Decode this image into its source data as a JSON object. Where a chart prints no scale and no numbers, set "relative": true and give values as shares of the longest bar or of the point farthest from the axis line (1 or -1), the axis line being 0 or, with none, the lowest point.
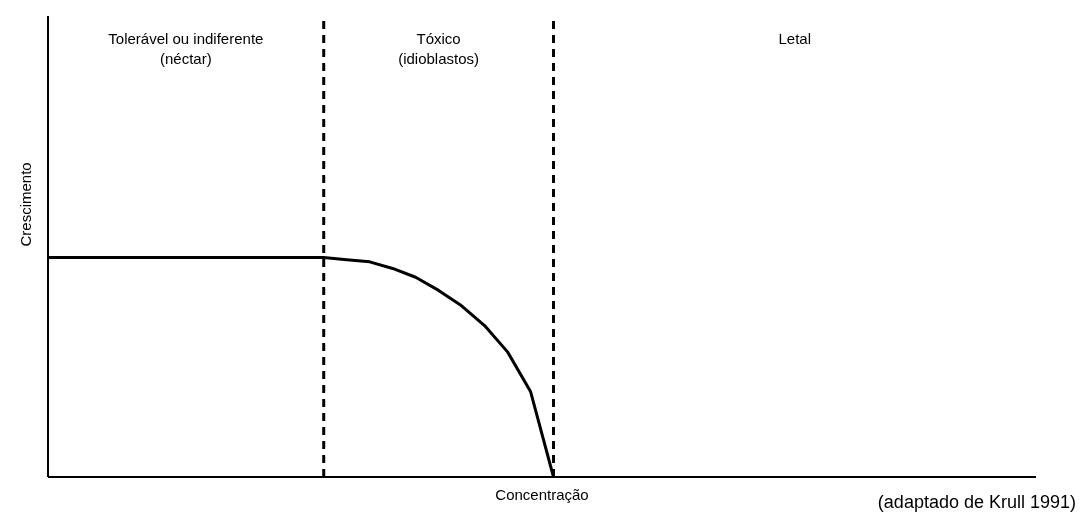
{
  "chart_data": {
    "type": "line",
    "relative": true,
    "xlabel": "Concentração",
    "ylabel": "Crescimento",
    "categories": [
      null,
      null,
      null,
      null,
      null,
      null,
      null,
      null,
      null,
      null,
      null,
      null,
      null,
      null,
      null,
      null,
      null,
      null,
      null,
      null,
      null,
      null,
      null,
      null,
      null,
      null,
      null,
      null,
      null,
      null,
      null,
      null,
      null,
      null,
      null,
      null,
      null,
      null,
      null,
      null,
      null,
      null,
      null,
      null
    ],
    "series": [
      {
        "color": "#000000",
        "values": [
          1,
          1,
          1,
          1,
          1,
          1,
          1,
          1,
          1,
          1,
          1,
          1,
          1,
          0.99,
          0.98,
          0.95,
          0.91,
          0.85,
          0.78,
          0.69,
          0.57,
          0.39,
          0,
          null,
          null,
          null,
          null,
          null,
          null,
          null,
          null,
          null,
          null,
          null,
          null,
          null,
          null,
          null,
          null,
          null,
          null,
          null,
          null,
          null
        ]
      }
    ],
    "annotations": [
      "Tolerável ou indiferente\n(néctar)",
      "Tóxico\n(idioblastos)",
      "Letal",
      "(adaptado de Krull 1991)"
    ],
    "marker": "none",
    "line_style": "solid",
    "grid": false,
    "legend": false
  }
}
